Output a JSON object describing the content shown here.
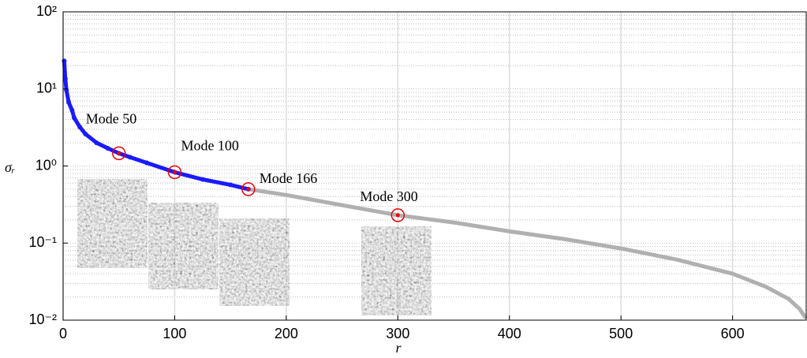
{
  "chart_data": {
    "type": "scatter",
    "xlabel": "r",
    "ylabel": "σᵣ",
    "xlim": [
      0,
      666
    ],
    "xticks": [
      0,
      100,
      200,
      300,
      400,
      500,
      600
    ],
    "ylim": [
      0.01,
      100
    ],
    "log_y": true,
    "grid": true,
    "yticks": [
      {
        "value": 0.01,
        "label": "10⁻²"
      },
      {
        "value": 0.1,
        "label": "10⁻¹"
      },
      {
        "value": 1,
        "label": "10⁰"
      },
      {
        "value": 10,
        "label": "10¹"
      },
      {
        "value": 100,
        "label": "10²"
      }
    ],
    "series": [
      {
        "color": "#1a1aff",
        "x": [
          1,
          2,
          3,
          5,
          8,
          10,
          15,
          20,
          30,
          40,
          50,
          60,
          75,
          100,
          125,
          150,
          166
        ],
        "values": [
          23,
          13.5,
          9.6,
          6.7,
          5.3,
          4.2,
          3.2,
          2.6,
          2.0,
          1.7,
          1.46,
          1.3,
          1.1,
          0.83,
          0.67,
          0.57,
          0.5
        ]
      },
      {
        "color": "#b0b0b0",
        "x": [
          166,
          200,
          250,
          300,
          350,
          400,
          450,
          500,
          550,
          600,
          630,
          650,
          660,
          665
        ],
        "values": [
          0.5,
          0.42,
          0.31,
          0.23,
          0.185,
          0.142,
          0.112,
          0.085,
          0.061,
          0.04,
          0.027,
          0.019,
          0.014,
          0.011
        ]
      }
    ],
    "highlights": [
      {
        "label": "Mode 50",
        "x": 50,
        "value": 1.46
      },
      {
        "label": "Mode 100",
        "x": 100,
        "value": 0.83
      },
      {
        "label": "Mode 166",
        "x": 166,
        "value": 0.5
      },
      {
        "label": "Mode 300",
        "x": 300,
        "value": 0.23
      }
    ]
  }
}
